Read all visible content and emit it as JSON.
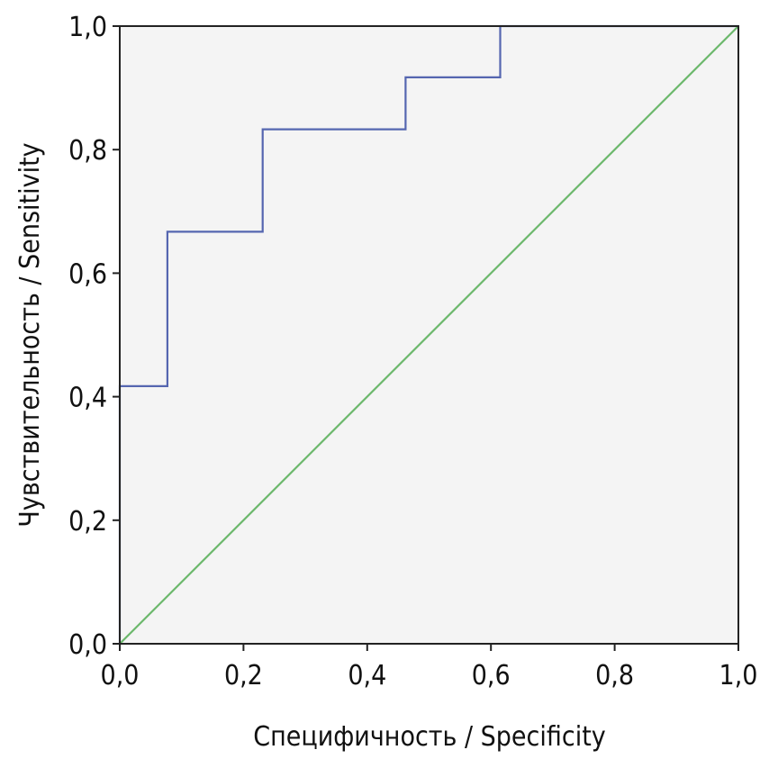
{
  "chart_data": {
    "type": "line",
    "xlabel": "Специфичность / Specificity",
    "ylabel": "Чувствительность / Sensitivity",
    "xlim": [
      0,
      1
    ],
    "ylim": [
      0,
      1
    ],
    "xticks": [
      "0,0",
      "0,2",
      "0,4",
      "0,6",
      "0,8",
      "1,0"
    ],
    "yticks": [
      "0,0",
      "0,2",
      "0,4",
      "0,6",
      "0,8",
      "1,0"
    ],
    "grid": false,
    "plot_background": "#f4f4f4",
    "series": [
      {
        "style": "step",
        "color": "#5566b0",
        "x": [
          0.0,
          0.0,
          0.077,
          0.077,
          0.231,
          0.231,
          0.462,
          0.462,
          0.615,
          0.615,
          1.0
        ],
        "y": [
          0.0,
          0.417,
          0.417,
          0.667,
          0.667,
          0.833,
          0.833,
          0.917,
          0.917,
          1.0,
          1.0
        ]
      },
      {
        "style": "line",
        "color": "#6cb86c",
        "x": [
          0.0,
          1.0
        ],
        "y": [
          0.0,
          1.0
        ]
      }
    ]
  }
}
